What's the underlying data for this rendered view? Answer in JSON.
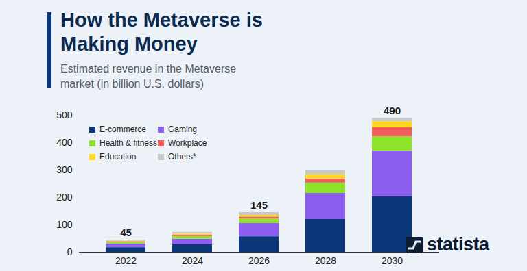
{
  "chart_data": {
    "type": "bar",
    "stacked": true,
    "title": "How the Metaverse is Making Money",
    "subtitle": "Estimated revenue in the Metaverse market (in billion U.S. dollars)",
    "categories": [
      "2022",
      "2024",
      "2026",
      "2028",
      "2030"
    ],
    "series": [
      {
        "name": "E-commerce",
        "color": "#0b3677",
        "values": [
          17,
          28,
          57,
          120,
          203
        ]
      },
      {
        "name": "Gaming",
        "color": "#8c5ef0",
        "values": [
          13,
          20,
          48,
          95,
          167
        ]
      },
      {
        "name": "Health & fitness",
        "color": "#8fe32a",
        "values": [
          6,
          10,
          17,
          38,
          52
        ]
      },
      {
        "name": "Workplace",
        "color": "#f25d5d",
        "values": [
          3,
          5,
          7,
          15,
          33
        ]
      },
      {
        "name": "Education",
        "color": "#ffd91f",
        "values": [
          2,
          4,
          6,
          15,
          22
        ]
      },
      {
        "name": "Others*",
        "color": "#c8c8c8",
        "values": [
          4,
          6,
          10,
          17,
          13
        ]
      }
    ],
    "totals": [
      45,
      null,
      145,
      null,
      490
    ],
    "ylim": [
      0,
      500
    ],
    "yticks": [
      0,
      100,
      200,
      300,
      400,
      500
    ],
    "grid": false,
    "legend": "top-left",
    "logo": "statista"
  }
}
